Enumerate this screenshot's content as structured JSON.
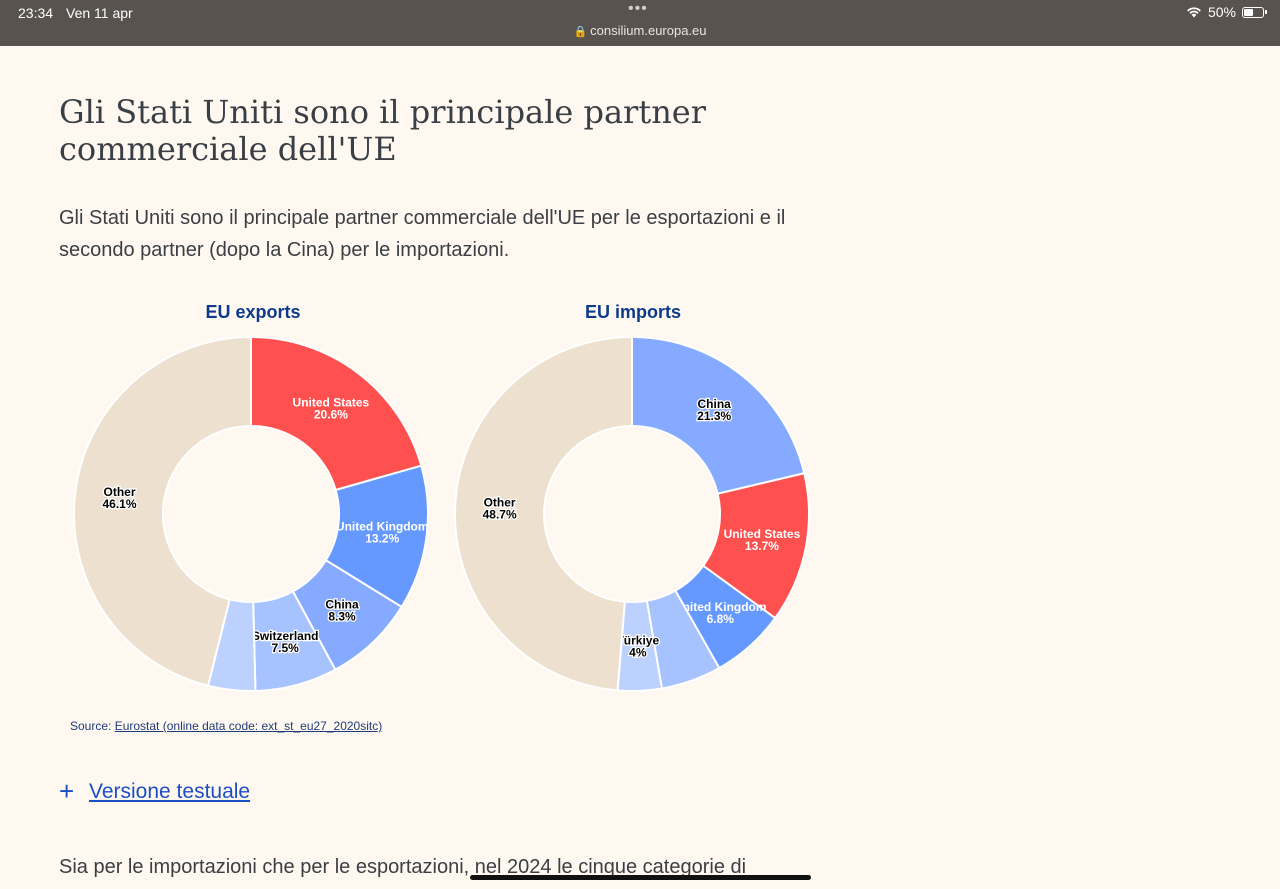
{
  "status_bar": {
    "time": "23:34",
    "date": "Ven 11 apr",
    "url": "consilium.europa.eu",
    "battery": "50%",
    "battery_level": 0.5,
    "wifi_icon": "wifi-icon",
    "lock_icon": "lock-icon"
  },
  "article": {
    "title": "Gli Stati Uniti sono il principale partner commerciale dell'UE",
    "lead": "Gli Stati Uniti sono il principale partner commerciale dell'UE per le esportazioni e il secondo partner (dopo la Cina) per le importazioni.",
    "source_prefix": "Source: ",
    "source_link": "Eurostat (online data code: ext_st_eu27_2020sitc)",
    "toggle_label": "Versione testuale",
    "toggle_icon": "plus-icon",
    "next_paragraph": "Sia per le importazioni che per le esportazioni, nel 2024 le cinque categorie di"
  },
  "colors": {
    "title": "#0d3a8c",
    "other": "#ede0cf",
    "united_states": "#ff5050",
    "china_imports": "#86aaff",
    "united_kingdom": "#6699ff",
    "light_blue": "#a6c2ff",
    "lightest_blue": "#bdd1ff"
  },
  "chart_data": [
    {
      "type": "pie",
      "title": "EU exports",
      "labels": [
        "United States",
        "United Kingdom",
        "China",
        "Switzerland",
        "",
        "Other"
      ],
      "values": [
        20.6,
        13.2,
        8.3,
        7.5,
        4.3,
        46.1
      ],
      "value_labels": [
        "20.6%",
        "13.2%",
        "8.3%",
        "7.5%",
        "",
        "46.1%"
      ],
      "colors": [
        "#ff5050",
        "#6699ff",
        "#86aaff",
        "#a6c2ff",
        "#bdd1ff",
        "#ede0cf"
      ],
      "label_colors": [
        "#ffffff",
        "#ffffff",
        "#000000",
        "#000000",
        "#000000",
        "#000000"
      ]
    },
    {
      "type": "pie",
      "title": "EU imports",
      "labels": [
        "China",
        "United States",
        "United Kingdom",
        "",
        "Türkiye",
        "Other"
      ],
      "values": [
        21.3,
        13.7,
        6.8,
        5.5,
        4,
        48.7
      ],
      "value_labels": [
        "21.3%",
        "13.7%",
        "6.8%",
        "",
        "4%",
        "48.7%"
      ],
      "colors": [
        "#86aaff",
        "#ff5050",
        "#6699ff",
        "#a6c2ff",
        "#bdd1ff",
        "#ede0cf"
      ],
      "label_colors": [
        "#000000",
        "#ffffff",
        "#ffffff",
        "#000000",
        "#000000",
        "#000000"
      ]
    }
  ]
}
